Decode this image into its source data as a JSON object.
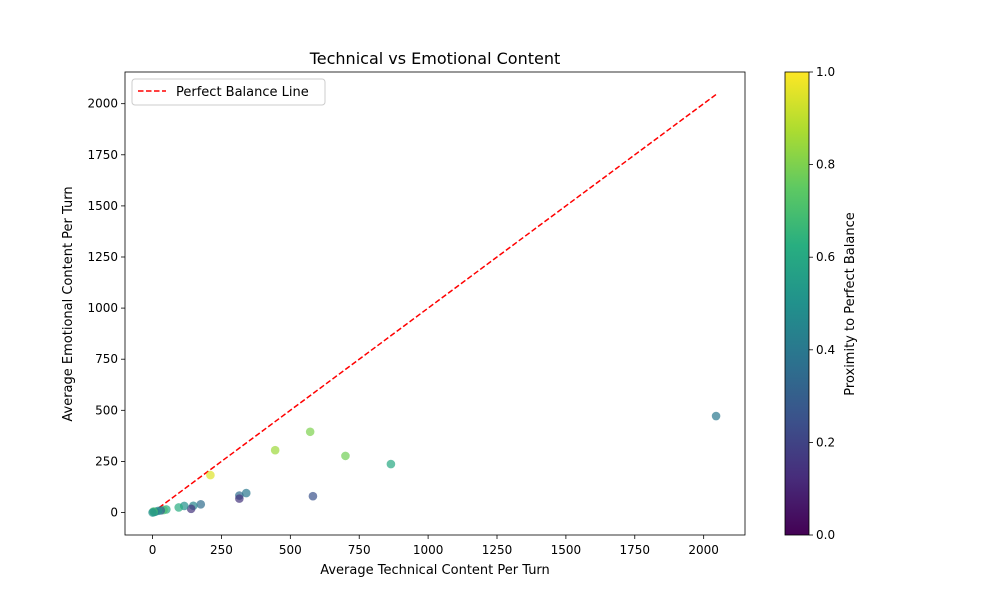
{
  "chart_data": {
    "type": "scatter",
    "title": "Technical vs Emotional Content",
    "xlabel": "Average Technical Content Per Turn",
    "ylabel": "Average Emotional Content Per Turn",
    "xlim": [
      -100,
      2150
    ],
    "ylim": [
      -110,
      2155
    ],
    "xticks": [
      0,
      250,
      500,
      750,
      1000,
      1250,
      1500,
      1750,
      2000
    ],
    "yticks": [
      0,
      250,
      500,
      750,
      1000,
      1250,
      1500,
      1750,
      2000
    ],
    "grid": false,
    "legend": {
      "position": "top-left",
      "entries": [
        "Perfect Balance Line"
      ]
    },
    "reference_line": {
      "name": "Perfect Balance Line",
      "color": "#ff0000",
      "style": "dashed",
      "from": [
        0,
        0
      ],
      "to": [
        2045,
        2045
      ]
    },
    "colorbar": {
      "label": "Proximity to Perfect Balance",
      "range": [
        0,
        1
      ],
      "ticks": [
        0.0,
        0.2,
        0.4,
        0.6,
        0.8,
        1.0
      ],
      "colormap": "viridis"
    },
    "points": [
      {
        "x": 2045,
        "y": 472,
        "c": 0.4
      },
      {
        "x": 865,
        "y": 237,
        "c": 0.6
      },
      {
        "x": 700,
        "y": 277,
        "c": 0.78
      },
      {
        "x": 572,
        "y": 395,
        "c": 0.8
      },
      {
        "x": 445,
        "y": 305,
        "c": 0.85
      },
      {
        "x": 582,
        "y": 80,
        "c": 0.25
      },
      {
        "x": 340,
        "y": 95,
        "c": 0.4
      },
      {
        "x": 315,
        "y": 83,
        "c": 0.35
      },
      {
        "x": 315,
        "y": 68,
        "c": 0.15
      },
      {
        "x": 210,
        "y": 183,
        "c": 0.95
      },
      {
        "x": 175,
        "y": 40,
        "c": 0.35
      },
      {
        "x": 148,
        "y": 33,
        "c": 0.45
      },
      {
        "x": 140,
        "y": 18,
        "c": 0.15
      },
      {
        "x": 115,
        "y": 32,
        "c": 0.5
      },
      {
        "x": 95,
        "y": 25,
        "c": 0.62
      },
      {
        "x": 50,
        "y": 15,
        "c": 0.6
      },
      {
        "x": 40,
        "y": 12,
        "c": 0.7
      },
      {
        "x": 30,
        "y": 10,
        "c": 0.3
      },
      {
        "x": 20,
        "y": 8,
        "c": 0.5
      },
      {
        "x": 10,
        "y": 4,
        "c": 0.4
      },
      {
        "x": 5,
        "y": 2,
        "c": 0.6
      },
      {
        "x": 3,
        "y": 5,
        "c": 0.7
      },
      {
        "x": 0,
        "y": 0,
        "c": 0.5
      }
    ]
  }
}
